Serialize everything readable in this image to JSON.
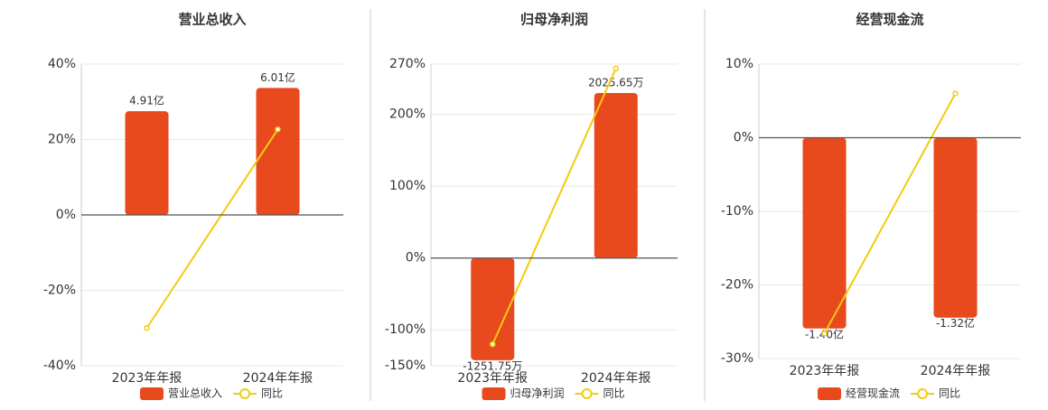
{
  "chart_data": [
    {
      "type": "bar",
      "title": "营业总收入",
      "categories": [
        "2023年年报",
        "2024年年报"
      ],
      "ylim": [
        -40,
        40
      ],
      "yticks": [
        {
          "value": -40,
          "label": "-40%"
        },
        {
          "value": -20,
          "label": "-20%"
        },
        {
          "value": 0,
          "label": "0%"
        },
        {
          "value": 20,
          "label": "20%"
        },
        {
          "value": 40,
          "label": "40%"
        }
      ],
      "y2lim": [
        -7.14,
        7.14
      ],
      "grid": true,
      "series": [
        {
          "name": "营业总收入",
          "color": "#e8491d",
          "axis": "y2",
          "values": [
            4.91,
            6.01
          ],
          "value_labels": [
            "4.91亿",
            "6.01亿"
          ]
        },
        {
          "name": "同比",
          "color": "#f2cb10",
          "type": "line",
          "values": [
            -30,
            22.7
          ]
        }
      ]
    },
    {
      "type": "bar",
      "title": "归母净利润",
      "categories": [
        "2023年年报",
        "2024年年报"
      ],
      "ylim": [
        -150,
        270
      ],
      "yticks": [
        {
          "value": -150,
          "label": "-150%"
        },
        {
          "value": -100,
          "label": "-100%"
        },
        {
          "value": 0,
          "label": "0%"
        },
        {
          "value": 100,
          "label": "100%"
        },
        {
          "value": 200,
          "label": "200%"
        },
        {
          "value": 270,
          "label": "270%"
        }
      ],
      "y2lim": [
        -1320,
        2380
      ],
      "grid": true,
      "series": [
        {
          "name": "归母净利润",
          "color": "#e8491d",
          "axis": "y2",
          "values": [
            -1251.75,
            2025.65
          ],
          "value_labels": [
            "-1251.75万",
            "2025.65万"
          ]
        },
        {
          "name": "同比",
          "color": "#f2cb10",
          "type": "line",
          "values": [
            -120,
            264
          ]
        }
      ]
    },
    {
      "type": "bar",
      "title": "经营现金流",
      "categories": [
        "2023年年报",
        "2024年年报"
      ],
      "ylim": [
        -30,
        10
      ],
      "yticks": [
        {
          "value": -30,
          "label": "-30%"
        },
        {
          "value": -20,
          "label": "-20%"
        },
        {
          "value": -10,
          "label": "-10%"
        },
        {
          "value": 0,
          "label": "0%"
        },
        {
          "value": 10,
          "label": "10%"
        }
      ],
      "y2lim": [
        -1.62,
        0.54
      ],
      "grid": true,
      "series": [
        {
          "name": "经营现金流",
          "color": "#e8491d",
          "axis": "y2",
          "values": [
            -1.4,
            -1.32
          ],
          "value_labels": [
            "-1.40亿",
            "-1.32亿"
          ]
        },
        {
          "name": "同比",
          "color": "#f2cb10",
          "type": "line",
          "values": [
            -26.6,
            6.0
          ]
        }
      ]
    }
  ]
}
